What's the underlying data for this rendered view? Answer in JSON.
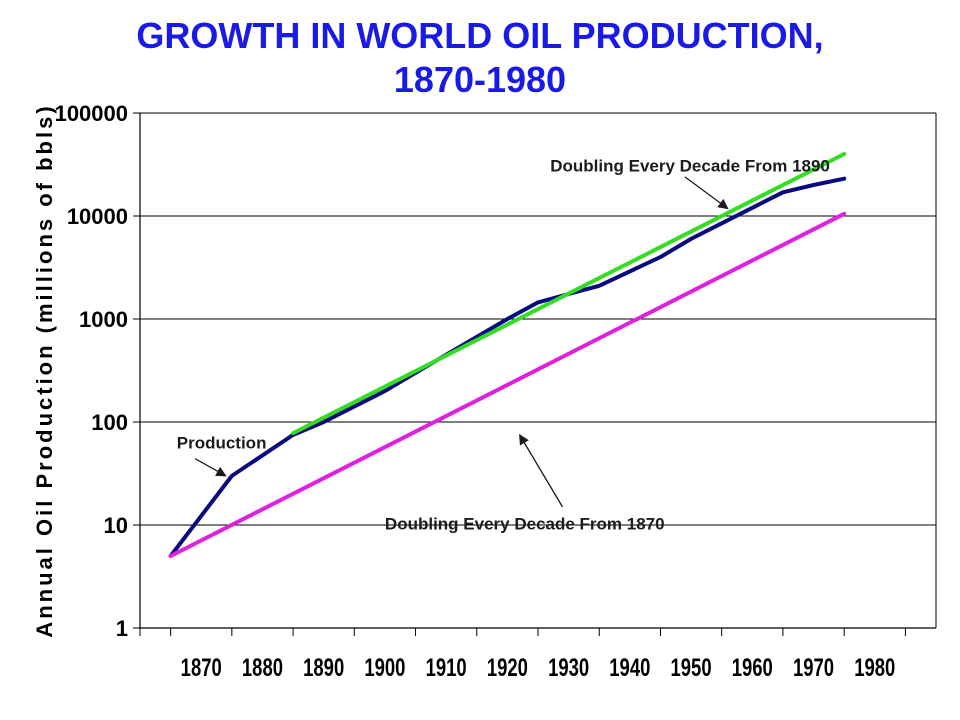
{
  "chart_data": {
    "type": "line",
    "title_line1": "GROWTH IN WORLD OIL PRODUCTION,",
    "title_line2": "1870-1980",
    "xlabel": "",
    "ylabel": "Annual Oil Production (millions of bbls)",
    "xscale": "linear",
    "yscale": "log",
    "xlim": [
      1860,
      1990
    ],
    "ylim": [
      1,
      100000
    ],
    "x_ticks": [
      "1870",
      "1880",
      "1890",
      "1900",
      "1910",
      "1920",
      "1930",
      "1940",
      "1950",
      "1960",
      "1970",
      "1980"
    ],
    "y_ticks": [
      "1",
      "10",
      "100",
      "1000",
      "10000",
      "100000"
    ],
    "grid": "horizontal",
    "legend": "none",
    "series": [
      {
        "key": "production",
        "name": "Production",
        "color": "#0a0a80",
        "points": [
          [
            1865,
            5
          ],
          [
            1875,
            30
          ],
          [
            1885,
            75
          ],
          [
            1890,
            100
          ],
          [
            1900,
            200
          ],
          [
            1910,
            450
          ],
          [
            1920,
            1000
          ],
          [
            1925,
            1450
          ],
          [
            1930,
            1750
          ],
          [
            1935,
            2100
          ],
          [
            1940,
            2900
          ],
          [
            1945,
            4000
          ],
          [
            1950,
            6000
          ],
          [
            1955,
            8500
          ],
          [
            1960,
            12000
          ],
          [
            1965,
            17000
          ],
          [
            1970,
            20000
          ],
          [
            1975,
            23000
          ]
        ]
      },
      {
        "key": "doubling_1890",
        "name": "Doubling Every Decade From 1890",
        "color": "#33dd22",
        "points": [
          [
            1885,
            78
          ],
          [
            1975,
            40000
          ]
        ]
      },
      {
        "key": "doubling_1870",
        "name": "Doubling Every Decade From 1870",
        "color": "#e020e0",
        "points": [
          [
            1865,
            5
          ],
          [
            1975,
            10500
          ]
        ]
      }
    ],
    "annotations": [
      {
        "text": "Production",
        "text_x": 1866,
        "text_y": 55,
        "arrow_from": [
          1869,
          44
        ],
        "arrow_to": [
          1874,
          30
        ]
      },
      {
        "text": "Doubling Every Decade From 1890",
        "text_x": 1927,
        "text_y": 27000,
        "arrow_from": [
          1949,
          24000
        ],
        "arrow_to": [
          1956,
          11800
        ]
      },
      {
        "text": "Doubling Every Decade From 1870",
        "text_x": 1900,
        "text_y": 9,
        "arrow_from": [
          1929,
          15
        ],
        "arrow_to": [
          1922,
          75
        ]
      }
    ]
  }
}
